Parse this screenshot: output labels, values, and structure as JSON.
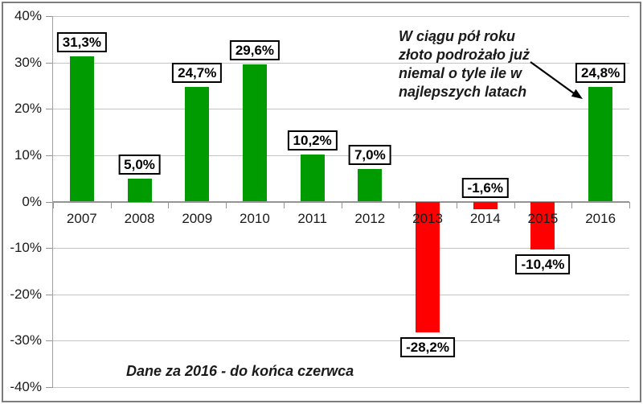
{
  "chart_data": {
    "type": "bar",
    "categories": [
      "2007",
      "2008",
      "2009",
      "2010",
      "2011",
      "2012",
      "2013",
      "2014",
      "2015",
      "2016"
    ],
    "values": [
      31.3,
      5.0,
      24.7,
      29.6,
      10.2,
      7.0,
      -28.2,
      -1.6,
      -10.4,
      24.8
    ],
    "value_labels": [
      "31,3%",
      "5,0%",
      "24,7%",
      "29,6%",
      "10,2%",
      "7,0%",
      "-28,2%",
      "-1,6%",
      "-10,4%",
      "24,8%"
    ],
    "label_positions": [
      "above",
      "above",
      "above",
      "above",
      "above",
      "above",
      "below",
      "above",
      "below",
      "above"
    ],
    "ytick_labels": [
      "40%",
      "30%",
      "20%",
      "10%",
      "0%",
      "-10%",
      "-20%",
      "-30%",
      "-40%"
    ],
    "ytick_values": [
      40,
      30,
      20,
      10,
      0,
      -10,
      -20,
      -30,
      -40
    ],
    "ylim": [
      -40,
      40
    ],
    "grid": true,
    "legend": "none",
    "colors": {
      "positive_bar": "#009B00",
      "negative_bar": "#FF0000",
      "gridline": "#c4c4c4",
      "axis": "#949494",
      "label_box_border": "#000000"
    },
    "annotation": "W ciągu pół roku\nzłoto podrożało już\nniemal o tyle ile w\nnajlepszych latach",
    "footnote": "Dane za 2016 - do końca czerwca"
  }
}
